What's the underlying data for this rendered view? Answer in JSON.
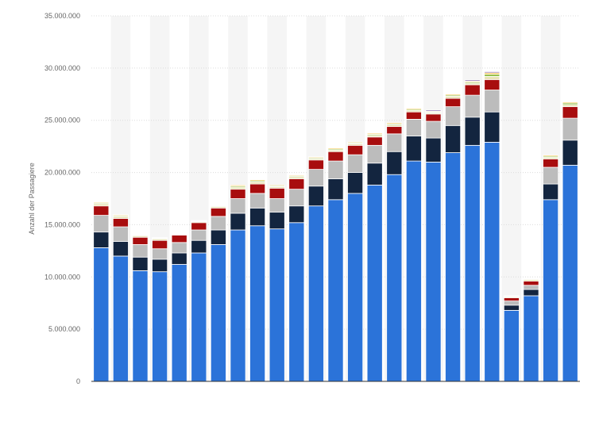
{
  "chart_data": {
    "type": "bar",
    "stacked": true,
    "title": "",
    "xlabel": "",
    "ylabel": "Anzahl der Passagiere",
    "ylim": [
      0,
      35000000
    ],
    "yticks": [
      {
        "value": 0,
        "label": "0"
      },
      {
        "value": 5000000,
        "label": "5.000.000"
      },
      {
        "value": 10000000,
        "label": "10.000.000"
      },
      {
        "value": 15000000,
        "label": "15.000.000"
      },
      {
        "value": 20000000,
        "label": "20.000.000"
      },
      {
        "value": 25000000,
        "label": "25.000.000"
      },
      {
        "value": 30000000,
        "label": "30.000.000"
      },
      {
        "value": 35000000,
        "label": "35.000.000"
      }
    ],
    "grid": true,
    "legend": "none",
    "bar_count": 25,
    "series": [
      {
        "color": "#2b73d9",
        "values": [
          12800000,
          12000000,
          10600000,
          10500000,
          11200000,
          12300000,
          13100000,
          14500000,
          14900000,
          14600000,
          15200000,
          16800000,
          17400000,
          18000000,
          18800000,
          19800000,
          21100000,
          21000000,
          21900000,
          22600000,
          22900000,
          6800000,
          8200000,
          17400000,
          20700000
        ]
      },
      {
        "color": "#13253f",
        "values": [
          1500000,
          1400000,
          1300000,
          1200000,
          1100000,
          1200000,
          1400000,
          1600000,
          1700000,
          1600000,
          1600000,
          1900000,
          2000000,
          2000000,
          2100000,
          2200000,
          2400000,
          2300000,
          2600000,
          2700000,
          2900000,
          500000,
          600000,
          1500000,
          2400000
        ]
      },
      {
        "color": "#bcbcbc",
        "values": [
          1600000,
          1400000,
          1200000,
          1000000,
          1000000,
          1000000,
          1300000,
          1400000,
          1400000,
          1300000,
          1600000,
          1600000,
          1700000,
          1700000,
          1700000,
          1700000,
          1600000,
          1600000,
          1800000,
          2100000,
          2100000,
          400000,
          400000,
          1600000,
          2100000
        ]
      },
      {
        "color": "#a80d0e",
        "values": [
          900000,
          800000,
          700000,
          800000,
          700000,
          700000,
          800000,
          900000,
          900000,
          1000000,
          1000000,
          900000,
          900000,
          900000,
          800000,
          700000,
          700000,
          700000,
          800000,
          1000000,
          1000000,
          300000,
          400000,
          800000,
          1100000
        ]
      },
      {
        "color": "#e8e3b5",
        "values": [
          200000,
          200000,
          150000,
          150000,
          0,
          100000,
          150000,
          200000,
          200000,
          150000,
          200000,
          150000,
          150000,
          150000,
          150000,
          150000,
          150000,
          100000,
          200000,
          150000,
          300000,
          100000,
          150000,
          150000,
          200000
        ]
      },
      {
        "color": "#8aba3c",
        "values": [
          80000,
          80000,
          60000,
          60000,
          0,
          50000,
          60000,
          100000,
          100000,
          80000,
          80000,
          80000,
          100000,
          80000,
          100000,
          100000,
          100000,
          80000,
          100000,
          100000,
          200000,
          50000,
          50000,
          100000,
          150000
        ]
      },
      {
        "color": "#f6c243",
        "values": [
          80000,
          80000,
          60000,
          60000,
          0,
          50000,
          60000,
          100000,
          100000,
          80000,
          80000,
          80000,
          100000,
          80000,
          100000,
          100000,
          100000,
          80000,
          100000,
          100000,
          150000,
          50000,
          50000,
          100000,
          100000
        ]
      },
      {
        "color": "#6b3d9a",
        "values": [
          0,
          0,
          0,
          0,
          0,
          0,
          0,
          0,
          0,
          0,
          0,
          0,
          0,
          0,
          0,
          0,
          0,
          100000,
          0,
          100000,
          100000,
          0,
          0,
          0,
          0
        ]
      }
    ]
  }
}
